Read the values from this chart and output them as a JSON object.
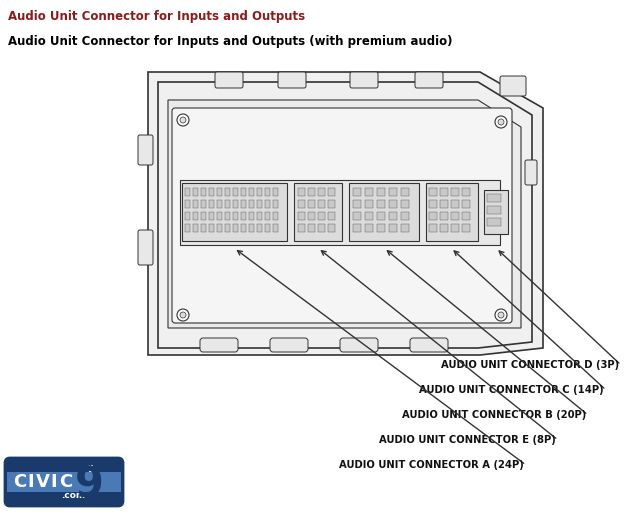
{
  "title1": "Audio Unit Connector for Inputs and Outputs",
  "title2": "Audio Unit Connector for Inputs and Outputs (with premium audio)",
  "title1_color": "#8B1A1A",
  "title2_color": "#000000",
  "bg_color": "#FFFFFF",
  "connector_labels": [
    "AUDIO UNIT CONNECTOR D (3P)",
    "AUDIO UNIT CONNECTOR C (14P)",
    "AUDIO UNIT CONNECTOR B (20P)",
    "AUDIO UNIT CONNECTOR E (8P)",
    "AUDIO UNIT CONNECTOR A (24P)"
  ],
  "line_color": "#333333",
  "fill_light": "#F0F0F0",
  "fill_mid": "#E0E0E0",
  "fill_dark": "#C8C8C8"
}
